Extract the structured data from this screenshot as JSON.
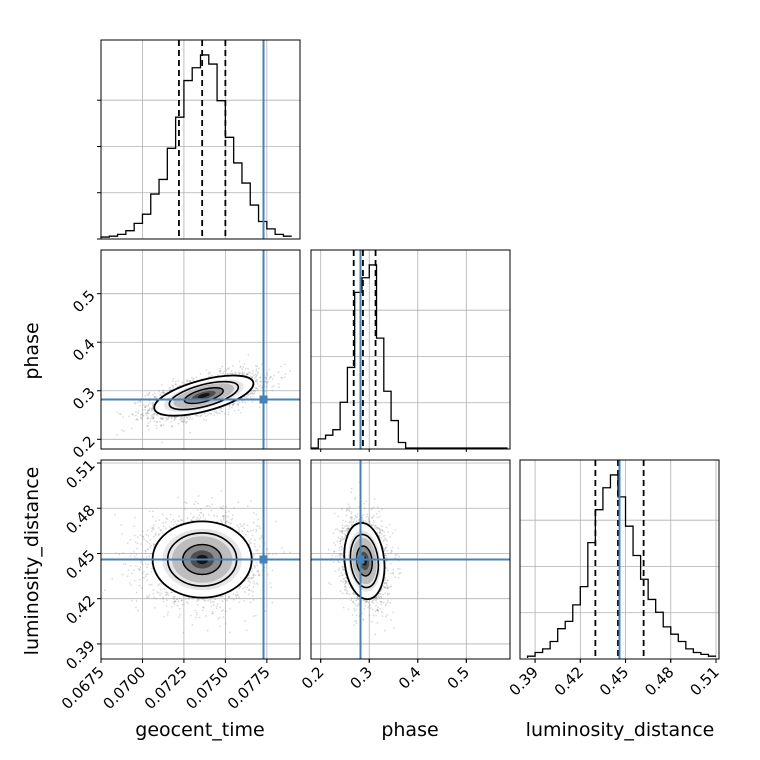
{
  "chart_data": {
    "type": "corner",
    "parameters": [
      "geocent_time",
      "phase",
      "luminosity_distance"
    ],
    "axis_labels": {
      "geocent_time": "geocent_time",
      "phase": "phase",
      "luminosity_distance": "luminosity_distance"
    },
    "ranges": {
      "geocent_time": [
        0.0675,
        0.0795
      ],
      "phase": [
        0.18,
        0.59
      ],
      "luminosity_distance": [
        0.38,
        0.512
      ]
    },
    "ticks": {
      "geocent_time": [
        "0.0675",
        "0.0700",
        "0.0725",
        "0.0750",
        "0.0775"
      ],
      "phase": [
        "0.2",
        "0.3",
        "0.4",
        "0.5"
      ],
      "luminosity_distance": [
        "0.39",
        "0.42",
        "0.45",
        "0.48",
        "0.51"
      ]
    },
    "grid": true,
    "colors": {
      "truth": "#4682b4",
      "hist": "#000000",
      "scatter": "#7f7f7f"
    },
    "injection": {
      "geocent_time": 0.0773,
      "phase": 0.282,
      "luminosity_distance": 0.446
    },
    "quantiles": {
      "geocent_time": [
        0.0722,
        0.0736,
        0.075
      ],
      "phase": [
        0.268,
        0.287,
        0.313
      ],
      "luminosity_distance": [
        0.43,
        0.445,
        0.462
      ]
    },
    "histograms": {
      "geocent_time": {
        "edges": [
          0.0675,
          0.068,
          0.0685,
          0.069,
          0.0695,
          0.07,
          0.0705,
          0.071,
          0.0715,
          0.072,
          0.0725,
          0.073,
          0.0735,
          0.074,
          0.0745,
          0.075,
          0.0755,
          0.076,
          0.0765,
          0.077,
          0.0775,
          0.078,
          0.0785,
          0.079
        ],
        "counts": [
          0.005,
          0.01,
          0.02,
          0.04,
          0.08,
          0.13,
          0.24,
          0.32,
          0.49,
          0.66,
          0.86,
          0.93,
          1.0,
          0.95,
          0.75,
          0.55,
          0.41,
          0.3,
          0.18,
          0.09,
          0.05,
          0.02,
          0.01
        ]
      },
      "phase": {
        "edges": [
          0.18,
          0.195,
          0.21,
          0.225,
          0.24,
          0.255,
          0.27,
          0.285,
          0.3,
          0.315,
          0.33,
          0.345,
          0.36,
          0.375,
          0.39,
          0.405,
          0.42,
          0.435,
          0.45,
          0.465,
          0.48,
          0.495,
          0.51,
          0.525,
          0.54,
          0.555,
          0.57,
          0.585
        ],
        "counts": [
          0.0,
          0.05,
          0.07,
          0.1,
          0.25,
          0.44,
          0.85,
          0.93,
          1.0,
          0.6,
          0.31,
          0.15,
          0.03,
          0.0,
          0.0,
          0.0,
          0.0,
          0.0,
          0.0,
          0.0,
          0.0,
          0.0,
          0.0,
          0.0,
          0.0,
          0.0,
          0.0
        ]
      },
      "luminosity_distance": {
        "edges": [
          0.385,
          0.39,
          0.395,
          0.4,
          0.405,
          0.41,
          0.415,
          0.42,
          0.425,
          0.43,
          0.435,
          0.44,
          0.445,
          0.45,
          0.455,
          0.46,
          0.465,
          0.47,
          0.475,
          0.48,
          0.485,
          0.49,
          0.495,
          0.5,
          0.505,
          0.51
        ],
        "counts": [
          0.01,
          0.03,
          0.05,
          0.09,
          0.16,
          0.2,
          0.29,
          0.39,
          0.63,
          0.81,
          0.93,
          1.0,
          0.88,
          0.72,
          0.56,
          0.43,
          0.32,
          0.25,
          0.17,
          0.13,
          0.09,
          0.05,
          0.03,
          0.02,
          0.01
        ]
      }
    },
    "posterior_2d": {
      "phase_vs_geocent_time": {
        "mean": [
          0.0737,
          0.29
        ],
        "sigma": [
          0.0013,
          0.018
        ],
        "correlation": 0.6
      },
      "luminosity_distance_vs_geocent_time": {
        "mean": [
          0.0736,
          0.446
        ],
        "sigma": [
          0.0013,
          0.011
        ],
        "correlation": 0.0
      },
      "luminosity_distance_vs_phase": {
        "mean": [
          0.29,
          0.445
        ],
        "sigma": [
          0.018,
          0.011
        ],
        "correlation": -0.15
      }
    }
  }
}
